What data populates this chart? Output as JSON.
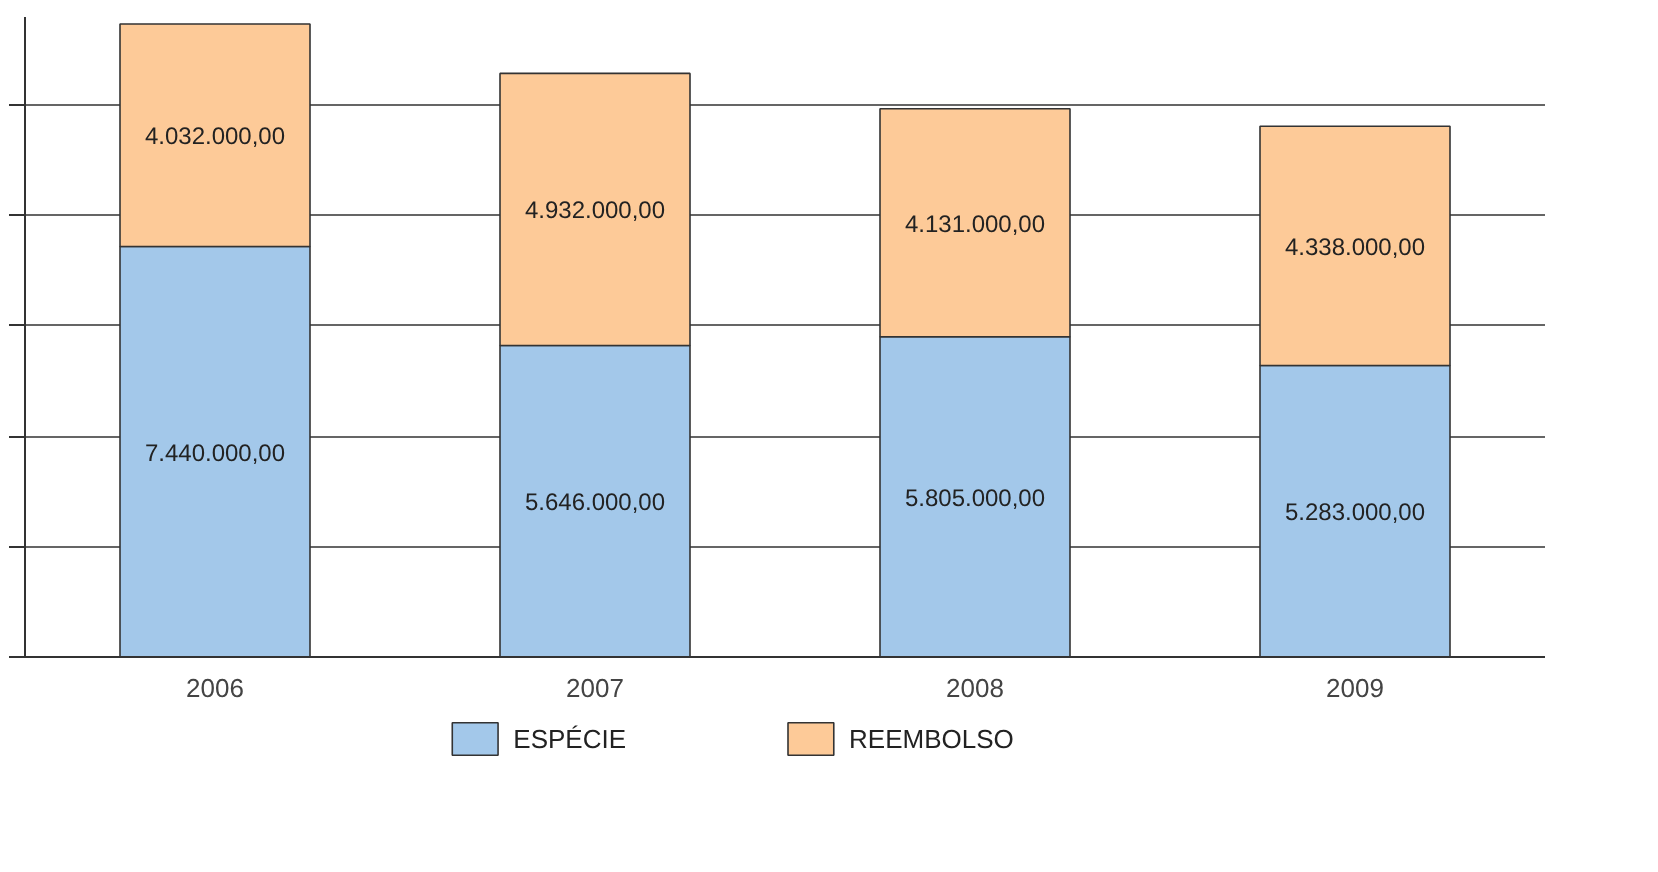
{
  "chart_data": {
    "type": "bar",
    "stacked": true,
    "categories": [
      "2006",
      "2007",
      "2008",
      "2009"
    ],
    "series": [
      {
        "name": "ESPÉCIE",
        "color": "#a3c8ea",
        "values": [
          7440000,
          5646000,
          5805000,
          5283000
        ],
        "value_labels": [
          "7.440.000,00",
          "5.646.000,00",
          "5.805.000,00",
          "5.283.000,00"
        ]
      },
      {
        "name": "REEMBOLSO",
        "color": "#fdca98",
        "values": [
          4032000,
          4932000,
          4131000,
          4338000
        ],
        "value_labels": [
          "4.032.000,00",
          "4.932.000,00",
          "4.131.000,00",
          "4.338.000,00"
        ]
      }
    ],
    "ylim": [
      0,
      11600000
    ],
    "yticks": [
      {
        "value": 0,
        "label": null
      },
      {
        "value": 2000000,
        "label": null
      },
      {
        "value": 4000000,
        "label": null
      },
      {
        "value": 6000000,
        "label": null
      },
      {
        "value": 8000000,
        "label": null
      },
      {
        "value": 10000000,
        "label": null
      }
    ],
    "grid": "y",
    "legend": "bottom",
    "tick_labels": "x"
  }
}
